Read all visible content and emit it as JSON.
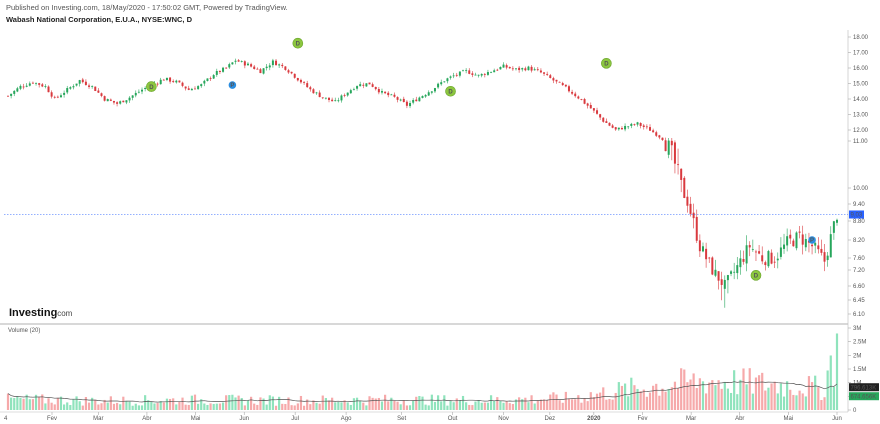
{
  "header": {
    "published": "Published on Investing.com, 18/May/2020 - 17:50:02 GMT, Powered by TradingView.",
    "title": "Wabash National Corporation, E.U.A., NYSE:WNC, D"
  },
  "logo": {
    "text": "Investing",
    "suffix": ".com"
  },
  "chart_data": [
    {
      "type": "candlestick",
      "title": "Wabash National Corporation, E.U.A., NYSE:WNC, D",
      "x_ticks": [
        "Fev",
        "Mar",
        "Abr",
        "Mai",
        "Jun",
        "Jul",
        "Ago",
        "Set",
        "Out",
        "Nov",
        "Dez",
        "2020",
        "Fev",
        "Mar",
        "Abr",
        "Mai",
        "Jun"
      ],
      "first_tick": "4",
      "y_ticks": [
        "18.00",
        "17.00",
        "16.00",
        "15.00",
        "14.00",
        "13.00",
        "12.00",
        "11.00",
        "10.00",
        "9.40",
        "8.80",
        "8.20",
        "7.60",
        "7.20",
        "6.60",
        "6.45",
        "6.10"
      ],
      "y_tick_values": [
        18.0,
        17.0,
        16.0,
        15.0,
        14.0,
        13.0,
        12.0,
        11.0,
        10.0,
        9.4,
        8.8,
        8.2,
        7.6,
        7.2,
        6.6,
        6.45,
        6.1
      ],
      "last_price": "9.03",
      "last_price_value": 9.03,
      "colors": {
        "up": "#26a65b",
        "down": "#d9393e",
        "last_price": "#2962ff"
      },
      "close_path": [
        [
          0,
          14.2
        ],
        [
          4,
          14.8
        ],
        [
          8,
          15.1
        ],
        [
          12,
          14.8
        ],
        [
          15,
          14.0
        ],
        [
          19,
          14.6
        ],
        [
          23,
          15.2
        ],
        [
          27,
          14.8
        ],
        [
          31,
          14.0
        ],
        [
          35,
          13.7
        ],
        [
          39,
          14.1
        ],
        [
          43,
          14.6
        ],
        [
          46,
          14.9
        ],
        [
          50,
          15.3
        ],
        [
          54,
          15.1
        ],
        [
          58,
          14.6
        ],
        [
          62,
          14.9
        ],
        [
          66,
          15.6
        ],
        [
          70,
          16.0
        ],
        [
          73,
          16.5
        ],
        [
          77,
          16.2
        ],
        [
          81,
          15.8
        ],
        [
          85,
          16.4
        ],
        [
          89,
          16.0
        ],
        [
          93,
          15.3
        ],
        [
          97,
          14.6
        ],
        [
          101,
          14.1
        ],
        [
          105,
          13.8
        ],
        [
          108,
          14.3
        ],
        [
          112,
          14.9
        ],
        [
          116,
          15.0
        ],
        [
          120,
          14.4
        ],
        [
          124,
          14.1
        ],
        [
          128,
          13.6
        ],
        [
          132,
          14.1
        ],
        [
          136,
          14.6
        ],
        [
          140,
          15.2
        ],
        [
          143,
          15.5
        ],
        [
          147,
          15.8
        ],
        [
          151,
          15.5
        ],
        [
          155,
          15.8
        ],
        [
          159,
          16.1
        ],
        [
          163,
          15.9
        ],
        [
          167,
          16.0
        ],
        [
          171,
          15.7
        ],
        [
          175,
          15.2
        ],
        [
          179,
          14.7
        ],
        [
          183,
          14.1
        ],
        [
          187,
          13.4
        ],
        [
          191,
          12.6
        ],
        [
          195,
          12.0
        ],
        [
          198,
          12.2
        ],
        [
          202,
          12.4
        ],
        [
          206,
          12.0
        ],
        [
          210,
          11.2
        ],
        [
          214,
          10.5
        ],
        [
          218,
          9.5
        ],
        [
          222,
          8.0
        ],
        [
          226,
          7.2
        ],
        [
          230,
          6.6
        ],
        [
          234,
          7.3
        ],
        [
          238,
          8.0
        ],
        [
          242,
          7.6
        ],
        [
          246,
          7.6
        ],
        [
          250,
          8.1
        ],
        [
          254,
          8.3
        ],
        [
          258,
          8.0
        ],
        [
          262,
          7.5
        ],
        [
          266,
          9.03
        ]
      ],
      "dividend_markers": [
        {
          "label": "D",
          "day": 46,
          "price": 14.8
        },
        {
          "label": "D",
          "day": 93,
          "price": 17.6
        },
        {
          "label": "D",
          "day": 142,
          "price": 14.5
        },
        {
          "label": "D",
          "day": 192,
          "price": 16.3
        },
        {
          "label": "D",
          "day": 240,
          "price": 7.0
        }
      ],
      "event_markers": [
        {
          "label": "P",
          "day": 72,
          "price": 14.9
        },
        {
          "label": "P",
          "day": 258,
          "price": 8.2
        }
      ]
    },
    {
      "type": "bar",
      "title": "Volume (20)",
      "y_ticks": [
        "3M",
        "2.5M",
        "2M",
        "1.5M",
        "1M",
        "0.5M",
        "0"
      ],
      "y_tick_values": [
        3.0,
        2.5,
        2.0,
        1.5,
        1.0,
        0.5,
        0
      ],
      "units": "M",
      "last_volume": "796.613K",
      "last_volume_value": 0.797,
      "ma_value": "674.656K",
      "ma_value_num": 0.675,
      "volume_profile": [
        [
          0,
          0.38
        ],
        [
          30,
          0.33
        ],
        [
          60,
          0.36
        ],
        [
          90,
          0.34
        ],
        [
          120,
          0.36
        ],
        [
          150,
          0.35
        ],
        [
          180,
          0.42
        ],
        [
          200,
          0.75
        ],
        [
          215,
          0.95
        ],
        [
          225,
          1.05
        ],
        [
          240,
          0.95
        ],
        [
          255,
          0.85
        ],
        [
          262,
          0.75
        ],
        [
          266,
          2.8
        ]
      ],
      "colors": {
        "up": "#8fe3bc",
        "down": "#f6a9aa",
        "ma": "#555555"
      }
    }
  ]
}
